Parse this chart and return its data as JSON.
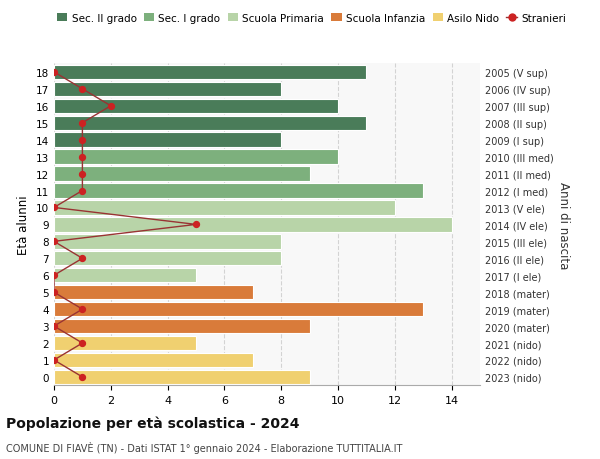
{
  "ages": [
    18,
    17,
    16,
    15,
    14,
    13,
    12,
    11,
    10,
    9,
    8,
    7,
    6,
    5,
    4,
    3,
    2,
    1,
    0
  ],
  "years": [
    "2005 (V sup)",
    "2006 (IV sup)",
    "2007 (III sup)",
    "2008 (II sup)",
    "2009 (I sup)",
    "2010 (III med)",
    "2011 (II med)",
    "2012 (I med)",
    "2013 (V ele)",
    "2014 (IV ele)",
    "2015 (III ele)",
    "2016 (II ele)",
    "2017 (I ele)",
    "2018 (mater)",
    "2019 (mater)",
    "2020 (mater)",
    "2021 (nido)",
    "2022 (nido)",
    "2023 (nido)"
  ],
  "values": [
    11,
    8,
    10,
    11,
    8,
    10,
    9,
    13,
    12,
    14,
    8,
    8,
    5,
    7,
    13,
    9,
    5,
    7,
    9
  ],
  "bar_colors": [
    "#4a7c59",
    "#4a7c59",
    "#4a7c59",
    "#4a7c59",
    "#4a7c59",
    "#7db07d",
    "#7db07d",
    "#7db07d",
    "#b8d4a8",
    "#b8d4a8",
    "#b8d4a8",
    "#b8d4a8",
    "#b8d4a8",
    "#d97b3a",
    "#d97b3a",
    "#d97b3a",
    "#f0d070",
    "#f0d070",
    "#f0d070"
  ],
  "stranieri_values": [
    0,
    1,
    2,
    1,
    1,
    1,
    1,
    1,
    0,
    5,
    0,
    1,
    0,
    0,
    1,
    0,
    1,
    0,
    1
  ],
  "title": "Popolazione per età scolastica - 2024",
  "subtitle": "COMUNE DI FIAVÈ (TN) - Dati ISTAT 1° gennaio 2024 - Elaborazione TUTTITALIA.IT",
  "ylabel": "Età alunni",
  "right_ylabel": "Anni di nascita",
  "xlim": [
    0,
    15
  ],
  "legend_labels": [
    "Sec. II grado",
    "Sec. I grado",
    "Scuola Primaria",
    "Scuola Infanzia",
    "Asilo Nido",
    "Stranieri"
  ],
  "legend_colors": [
    "#4a7c59",
    "#7db07d",
    "#b8d4a8",
    "#d97b3a",
    "#f0d070",
    "#cc2222"
  ],
  "stranieri_line_color": "#993333",
  "stranieri_dot_color": "#cc2222",
  "bar_height": 0.85,
  "grid_color": "#bbbbbb",
  "bg_plot": "#f8f8f8"
}
